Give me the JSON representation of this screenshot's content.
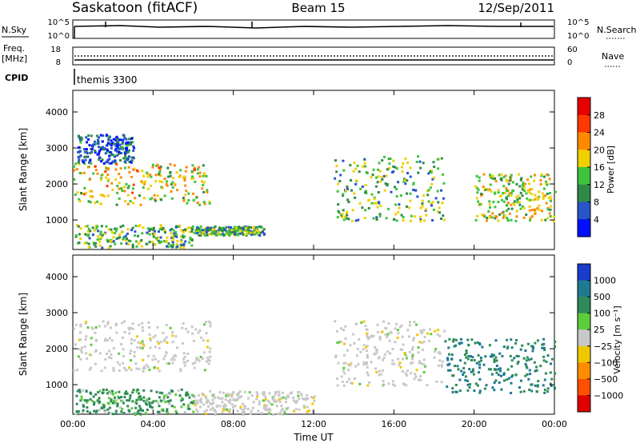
{
  "header": {
    "station": "Saskatoon (fitACF)",
    "beam": "Beam 15",
    "date": "12/Sep/2011"
  },
  "top_panels": {
    "nsky_label": "N.Sky",
    "nsky_ticks": [
      "10^5",
      "10^0"
    ],
    "nsearch_label": "N.Search",
    "nsearch_ticks": [
      "10^5",
      "10^0"
    ],
    "freq_label_1": "Freq.",
    "freq_label_2": "[MHz]",
    "freq_ticks": [
      "18",
      "8"
    ],
    "nave_label": "Nave",
    "nave_ticks": [
      "60",
      "0"
    ],
    "cpid_label": "CPID",
    "cpid_value": "themis 3300"
  },
  "chart_data": [
    {
      "type": "heatmap",
      "name": "power",
      "ylabel": "Slant Range [km]",
      "ylim": [
        180,
        4600
      ],
      "y_ticks": [
        1000,
        2000,
        3000,
        4000
      ],
      "xlim": [
        0,
        24
      ],
      "x_tick_labels": [
        "00:00",
        "04:00",
        "08:00",
        "12:00",
        "16:00",
        "20:00",
        "00:00"
      ],
      "colorbar": {
        "label": "Power [dB]",
        "tick_labels": [
          "4",
          "8",
          "12",
          "16",
          "20",
          "24",
          "28"
        ],
        "colors": [
          "#0010ff",
          "#2855c8",
          "#2f8a48",
          "#3cc43c",
          "#f0d000",
          "#ff8a00",
          "#ff3800",
          "#e60000"
        ]
      },
      "bands": [
        {
          "t": [
            0.0,
            6.8
          ],
          "r": [
            1450,
            2600
          ],
          "value": 18
        },
        {
          "t": [
            0.2,
            3.0
          ],
          "r": [
            2600,
            3400
          ],
          "value": 6
        },
        {
          "t": [
            0.1,
            6.0
          ],
          "r": [
            250,
            900
          ],
          "value": 13
        },
        {
          "t": [
            6.0,
            9.5
          ],
          "r": [
            600,
            850
          ],
          "value": 12
        },
        {
          "t": [
            13.0,
            18.5
          ],
          "r": [
            1000,
            2800
          ],
          "value": 13
        },
        {
          "t": [
            20.0,
            24.0
          ],
          "r": [
            1000,
            2300
          ],
          "value": 16
        }
      ]
    },
    {
      "type": "heatmap",
      "name": "velocity",
      "ylabel": "Slant Range [km]",
      "ylim": [
        180,
        4600
      ],
      "y_ticks": [
        1000,
        2000,
        3000,
        4000
      ],
      "xlim": [
        0,
        24
      ],
      "x_tick_labels": [
        "00:00",
        "04:00",
        "08:00",
        "12:00",
        "16:00",
        "20:00",
        "00:00"
      ],
      "xlabel": "Time UT",
      "colorbar": {
        "label": "Velocity [m s⁻¹]",
        "tick_labels": [
          "1000",
          "500",
          "100",
          "25",
          "−25",
          "−100",
          "−500",
          "−1000"
        ],
        "colors": [
          "#1a3ccc",
          "#1f7a90",
          "#2e8a5a",
          "#5dcc3a",
          "#c8c8c8",
          "#f0c800",
          "#ff8c00",
          "#ff5000",
          "#e00000"
        ]
      },
      "bands": [
        {
          "t": [
            0.0,
            6.8
          ],
          "r": [
            1400,
            2800
          ],
          "value": 0
        },
        {
          "t": [
            0.1,
            6.0
          ],
          "r": [
            200,
            900
          ],
          "value": 80
        },
        {
          "t": [
            6.0,
            12.0
          ],
          "r": [
            200,
            850
          ],
          "value": 0
        },
        {
          "t": [
            13.0,
            18.5
          ],
          "r": [
            1000,
            2800
          ],
          "value": 0
        },
        {
          "t": [
            18.5,
            24.0
          ],
          "r": [
            800,
            2300
          ],
          "value": 300
        }
      ]
    }
  ]
}
